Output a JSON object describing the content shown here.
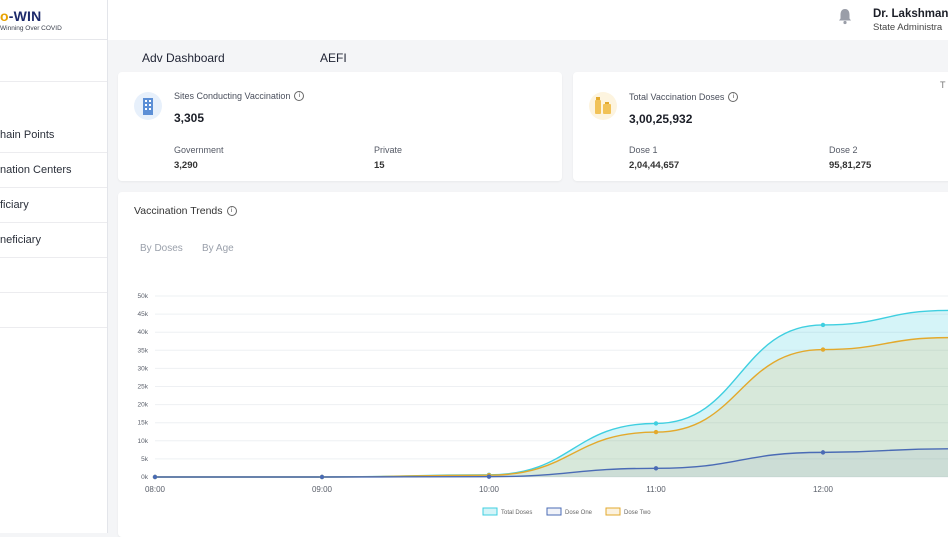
{
  "app": {
    "logo_prefix": "o",
    "logo_suffix": "-WIN",
    "tagline": "Winning Over COVID"
  },
  "sidebar": {
    "items": [
      {
        "label": ""
      },
      {
        "label": "hain Points"
      },
      {
        "label": "nation Centers"
      },
      {
        "label": "ficiary"
      },
      {
        "label": "neficiary"
      },
      {
        "label": ""
      },
      {
        "label": ""
      }
    ]
  },
  "header": {
    "user_name": "Dr. Lakshmana",
    "user_role": "State Administra",
    "notification_icon": "bell-icon"
  },
  "tabs": [
    {
      "label": "Adv Dashboard"
    },
    {
      "label": "AEFI"
    }
  ],
  "cards": {
    "sites": {
      "title": "Sites Conducting Vaccination",
      "value": "3,305",
      "icon": "building-icon",
      "sub": [
        {
          "label": "Government",
          "value": "3,290"
        },
        {
          "label": "Private",
          "value": "15"
        }
      ]
    },
    "doses": {
      "title": "Total Vaccination Doses",
      "value": "3,00,25,932",
      "icon": "vaccine-vial-icon",
      "sub": [
        {
          "label": "Dose 1",
          "value": "2,04,44,657"
        },
        {
          "label": "Dose 2",
          "value": "95,81,275"
        }
      ],
      "corner_mark": "T"
    }
  },
  "trends": {
    "title": "Vaccination Trends",
    "tabs": [
      {
        "label": "By Doses"
      },
      {
        "label": "By Age"
      }
    ]
  },
  "colors": {
    "total": "#3fcfe0",
    "dose_one": "#4a6bb5",
    "dose_two": "#e3a92c",
    "primary": "#1d2a6b"
  },
  "chart_data": {
    "type": "area",
    "x": [
      "08:00",
      "09:00",
      "10:00",
      "11:00",
      "12:00"
    ],
    "yticks": [
      "0k",
      "5k",
      "10k",
      "15k",
      "20k",
      "25k",
      "30k",
      "35k",
      "40k",
      "45k",
      "50k"
    ],
    "ylim": [
      0,
      50000
    ],
    "series": [
      {
        "name": "Total Doses",
        "values": [
          0,
          0,
          600,
          14800,
          42000
        ]
      },
      {
        "name": "Dose One",
        "values": [
          0,
          0,
          100,
          2400,
          6800
        ]
      },
      {
        "name": "Dose Two",
        "values": [
          0,
          0,
          500,
          12400,
          35200
        ]
      }
    ],
    "grid": true,
    "legend": "bottom"
  }
}
